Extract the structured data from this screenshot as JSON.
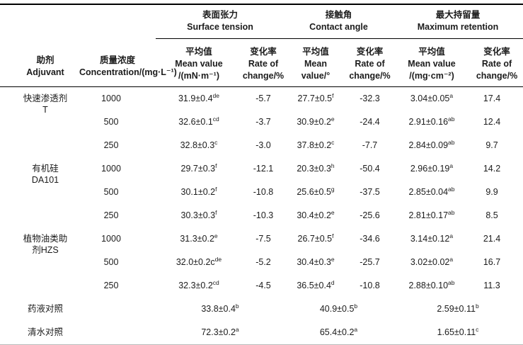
{
  "table": {
    "col_headers": {
      "adjuvant": "助剂\nAdjuvant",
      "concentration": "质量浓度\nConcentration/(mg·L⁻¹)"
    },
    "groups": [
      {
        "zh": "表面张力",
        "en": "Surface tension"
      },
      {
        "zh": "接触角",
        "en": "Contact angle"
      },
      {
        "zh": "最大持留量",
        "en": "Maximum retention"
      }
    ],
    "subheaders": [
      {
        "zh": "平均值",
        "l2": "Mean value",
        "l3": "/(mN·m⁻¹)"
      },
      {
        "zh": "变化率",
        "l2": "Rate of",
        "l3": "change/%"
      },
      {
        "zh": "平均值",
        "l2": "Mean",
        "l3": "value/°"
      },
      {
        "zh": "变化率",
        "l2": "Rate of",
        "l3": "change/%"
      },
      {
        "zh": "平均值",
        "l2": "Mean value",
        "l3": "/(mg·cm⁻²)"
      },
      {
        "zh": "变化率",
        "l2": "Rate of",
        "l3": "change/%"
      }
    ],
    "rows": [
      {
        "adjuvant": "快速渗透剂\nT",
        "conc": "1000",
        "st_mean": "31.9±0.4",
        "st_sup": "de",
        "st_rate": "-5.7",
        "ca_mean": "27.7±0.5",
        "ca_sup": "f",
        "ca_rate": "-32.3",
        "mr_mean": "3.04±0.05",
        "mr_sup": "a",
        "mr_rate": "17.4"
      },
      {
        "conc": "500",
        "st_mean": "32.6±0.1",
        "st_sup": "cd",
        "st_rate": "-3.7",
        "ca_mean": "30.9±0.2",
        "ca_sup": "e",
        "ca_rate": "-24.4",
        "mr_mean": "2.91±0.16",
        "mr_sup": "ab",
        "mr_rate": "12.4"
      },
      {
        "conc": "250",
        "st_mean": "32.8±0.3",
        "st_sup": "c",
        "st_rate": "-3.0",
        "ca_mean": "37.8±0.2",
        "ca_sup": "c",
        "ca_rate": "-7.7",
        "mr_mean": "2.84±0.09",
        "mr_sup": "ab",
        "mr_rate": "9.7"
      },
      {
        "adjuvant": "有机硅\nDA101",
        "conc": "1000",
        "st_mean": "29.7±0.3",
        "st_sup": "f",
        "st_rate": "-12.1",
        "ca_mean": "20.3±0.3",
        "ca_sup": "h",
        "ca_rate": "-50.4",
        "mr_mean": "2.96±0.19",
        "mr_sup": "a",
        "mr_rate": "14.2"
      },
      {
        "conc": "500",
        "st_mean": "30.1±0.2",
        "st_sup": "f",
        "st_rate": "-10.8",
        "ca_mean": "25.6±0.5",
        "ca_sup": "g",
        "ca_rate": "-37.5",
        "mr_mean": "2.85±0.04",
        "mr_sup": "ab",
        "mr_rate": "9.9"
      },
      {
        "conc": "250",
        "st_mean": "30.3±0.3",
        "st_sup": "f",
        "st_rate": "-10.3",
        "ca_mean": "30.4±0.2",
        "ca_sup": "e",
        "ca_rate": "-25.6",
        "mr_mean": "2.81±0.17",
        "mr_sup": "ab",
        "mr_rate": "8.5"
      },
      {
        "adjuvant": "植物油类助\n剂HZS",
        "conc": "1000",
        "st_mean": "31.3±0.2",
        "st_sup": "e",
        "st_rate": "-7.5",
        "ca_mean": "26.7±0.5",
        "ca_sup": "f",
        "ca_rate": "-34.6",
        "mr_mean": "3.14±0.12",
        "mr_sup": "a",
        "mr_rate": "21.4"
      },
      {
        "conc": "500",
        "st_mean": "32.0±0.2c",
        "st_sup": "de",
        "st_rate": "-5.2",
        "ca_mean": "30.4±0.3",
        "ca_sup": "e",
        "ca_rate": "-25.7",
        "mr_mean": "3.02±0.02",
        "mr_sup": "a",
        "mr_rate": "16.7"
      },
      {
        "conc": "250",
        "st_mean": "32.3±0.2",
        "st_sup": "cd",
        "st_rate": "-4.5",
        "ca_mean": "36.5±0.4",
        "ca_sup": "d",
        "ca_rate": "-10.8",
        "mr_mean": "2.88±0.10",
        "mr_sup": "ab",
        "mr_rate": "11.3"
      },
      {
        "adjuvant": "药液对照",
        "st_mean": "33.8±0.4",
        "st_sup": "b",
        "ca_mean": "40.9±0.5",
        "ca_sup": "b",
        "mr_mean": "2.59±0.11",
        "mr_sup": "b"
      },
      {
        "adjuvant": "清水对照",
        "st_mean": "72.3±0.2",
        "st_sup": "a",
        "ca_mean": "65.4±0.2",
        "ca_sup": "a",
        "mr_mean": "1.65±0.11",
        "mr_sup": "c"
      }
    ]
  }
}
